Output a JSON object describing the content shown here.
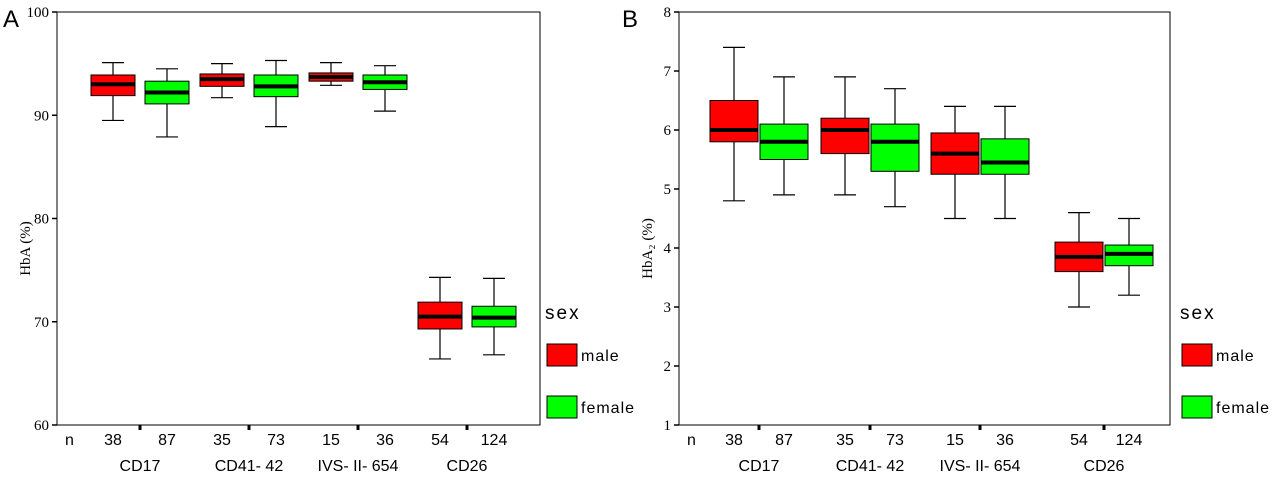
{
  "chart_data": [
    {
      "type": "box",
      "panel_label": "A",
      "ylabel": "HbA  (%)",
      "ylim": [
        60,
        100
      ],
      "yticks": [
        60,
        70,
        80,
        90,
        100
      ],
      "n_label": "n",
      "categories": [
        "CD17",
        "CD41- 42",
        "IVS- II- 654",
        "CD26"
      ],
      "legend": {
        "title": "sex",
        "placement": "right"
      },
      "series": [
        {
          "name": "male",
          "color": "#ff0000",
          "n": [
            "38",
            "35",
            "15",
            "54"
          ],
          "boxes": [
            {
              "min": 89.5,
              "q1": 91.9,
              "median": 93.0,
              "q3": 93.9,
              "max": 95.1
            },
            {
              "min": 91.7,
              "q1": 92.8,
              "median": 93.5,
              "q3": 94.0,
              "max": 95.0
            },
            {
              "min": 92.9,
              "q1": 93.3,
              "median": 93.7,
              "q3": 94.1,
              "max": 95.1
            },
            {
              "min": 66.4,
              "q1": 69.3,
              "median": 70.5,
              "q3": 71.9,
              "max": 74.3
            }
          ]
        },
        {
          "name": "female",
          "color": "#00ff00",
          "n": [
            "87",
            "73",
            "36",
            "124"
          ],
          "boxes": [
            {
              "min": 87.9,
              "q1": 91.1,
              "median": 92.2,
              "q3": 93.3,
              "max": 94.5
            },
            {
              "min": 88.9,
              "q1": 91.8,
              "median": 92.8,
              "q3": 93.9,
              "max": 95.3
            },
            {
              "min": 90.4,
              "q1": 92.5,
              "median": 93.2,
              "q3": 93.9,
              "max": 94.8
            },
            {
              "min": 66.8,
              "q1": 69.5,
              "median": 70.4,
              "q3": 71.5,
              "max": 74.2
            }
          ]
        }
      ]
    },
    {
      "type": "box",
      "panel_label": "B",
      "ylabel": "HbA₂  (%)",
      "ylim": [
        1,
        8
      ],
      "yticks": [
        1,
        2,
        3,
        4,
        5,
        6,
        7,
        8
      ],
      "n_label": "n",
      "categories": [
        "CD17",
        "CD41- 42",
        "IVS- II- 654",
        "CD26"
      ],
      "legend": {
        "title": "sex",
        "placement": "right"
      },
      "series": [
        {
          "name": "male",
          "color": "#ff0000",
          "n": [
            "38",
            "35",
            "15",
            "54"
          ],
          "boxes": [
            {
              "min": 4.8,
              "q1": 5.8,
              "median": 6.0,
              "q3": 6.5,
              "max": 7.4
            },
            {
              "min": 4.9,
              "q1": 5.6,
              "median": 6.0,
              "q3": 6.2,
              "max": 6.9
            },
            {
              "min": 4.5,
              "q1": 5.25,
              "median": 5.6,
              "q3": 5.95,
              "max": 6.4
            },
            {
              "min": 3.0,
              "q1": 3.6,
              "median": 3.85,
              "q3": 4.1,
              "max": 4.6
            }
          ]
        },
        {
          "name": "female",
          "color": "#00ff00",
          "n": [
            "87",
            "73",
            "36",
            "124"
          ],
          "boxes": [
            {
              "min": 4.9,
              "q1": 5.5,
              "median": 5.8,
              "q3": 6.1,
              "max": 6.9
            },
            {
              "min": 4.7,
              "q1": 5.3,
              "median": 5.8,
              "q3": 6.1,
              "max": 6.7
            },
            {
              "min": 4.5,
              "q1": 5.25,
              "median": 5.45,
              "q3": 5.85,
              "max": 6.4
            },
            {
              "min": 3.2,
              "q1": 3.7,
              "median": 3.9,
              "q3": 4.05,
              "max": 4.5
            }
          ]
        }
      ]
    }
  ]
}
